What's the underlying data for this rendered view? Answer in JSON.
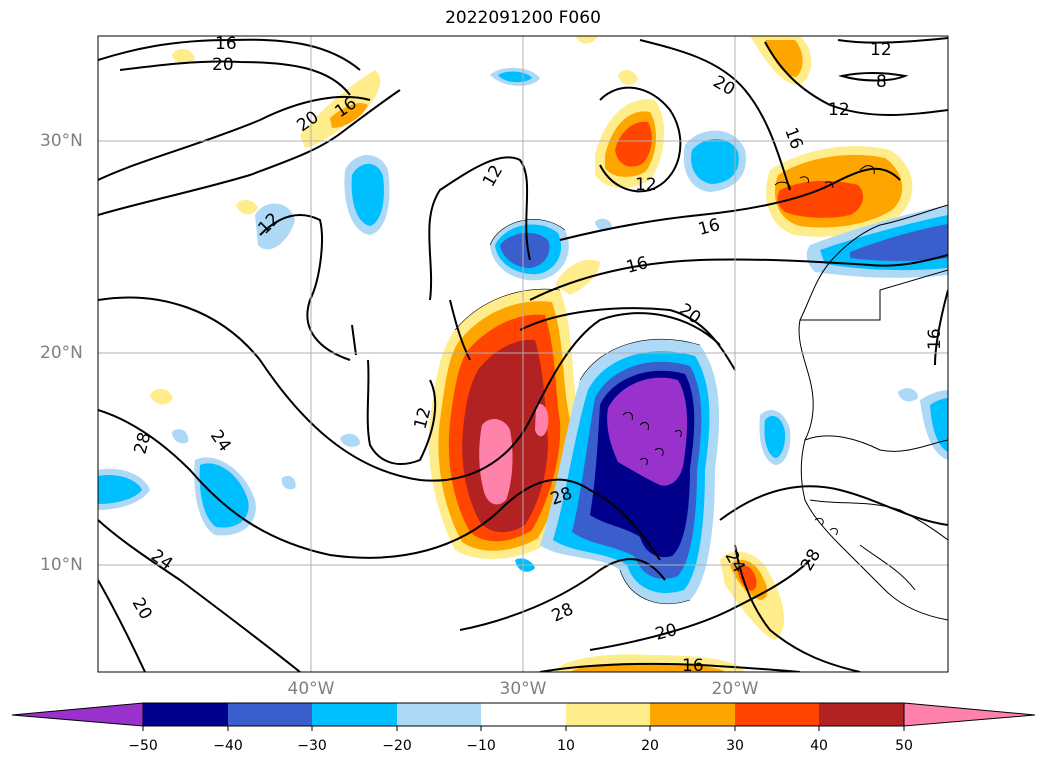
{
  "title": "2022091200 F060",
  "lat_ticks": [
    "30°N",
    "20°N",
    "10°N"
  ],
  "lon_ticks": [
    "40°W",
    "30°W",
    "20°W"
  ],
  "colorbar": {
    "ticks": [
      "−50",
      "−40",
      "−30",
      "−20",
      "−10",
      "10",
      "20",
      "30",
      "40",
      "50"
    ],
    "colors": [
      "#9932cc",
      "#00008b",
      "#3a5fcd",
      "#00bfff",
      "#add8f6",
      "#ffffff",
      "#ffec8b",
      "#ffa500",
      "#ff4500",
      "#b22222",
      "#ff82ab"
    ]
  },
  "contour_labels": [
    "16",
    "20",
    "12",
    "8",
    "12",
    "20",
    "20",
    "16",
    "16",
    "12",
    "12",
    "12",
    "16",
    "16",
    "20",
    "16",
    "12",
    "28",
    "24",
    "28",
    "24",
    "28",
    "24",
    "20",
    "28",
    "20",
    "16"
  ]
}
